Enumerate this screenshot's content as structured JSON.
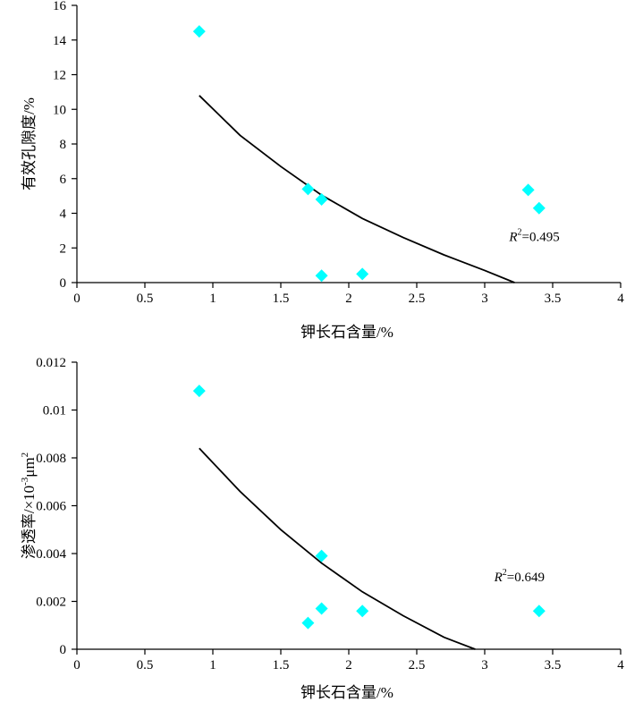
{
  "chart_data": [
    {
      "type": "scatter",
      "title": "",
      "xlabel": "钾长石含量/%",
      "ylabel": "有效孔隙度/%",
      "xlim": [
        0,
        4
      ],
      "ylim": [
        0,
        16
      ],
      "xticks": [
        0,
        0.5,
        1,
        1.5,
        2,
        2.5,
        3,
        3.5,
        4
      ],
      "yticks": [
        0,
        2,
        4,
        6,
        8,
        10,
        12,
        14,
        16
      ],
      "xtick_labels": [
        "0",
        "0.5",
        "1",
        "1.5",
        "2",
        "2.5",
        "3",
        "3.5",
        "4"
      ],
      "ytick_labels": [
        "0",
        "2",
        "4",
        "6",
        "8",
        "10",
        "12",
        "14",
        "16"
      ],
      "points": [
        {
          "x": 0.9,
          "y": 14.5
        },
        {
          "x": 1.7,
          "y": 5.4
        },
        {
          "x": 1.8,
          "y": 4.8
        },
        {
          "x": 1.8,
          "y": 0.4
        },
        {
          "x": 2.1,
          "y": 0.5
        },
        {
          "x": 3.32,
          "y": 5.35
        },
        {
          "x": 3.4,
          "y": 4.3
        }
      ],
      "trendline": {
        "type": "curve",
        "points": [
          {
            "x": 0.9,
            "y": 10.8
          },
          {
            "x": 1.2,
            "y": 8.5
          },
          {
            "x": 1.5,
            "y": 6.7
          },
          {
            "x": 1.8,
            "y": 5.05
          },
          {
            "x": 2.1,
            "y": 3.7
          },
          {
            "x": 2.4,
            "y": 2.6
          },
          {
            "x": 2.7,
            "y": 1.6
          },
          {
            "x": 3.0,
            "y": 0.7
          },
          {
            "x": 3.22,
            "y": 0.0
          }
        ]
      },
      "r2_label": "R",
      "r2_sup": "2",
      "r2_value": "=0.495",
      "r2_anchor": {
        "x": 3.18,
        "y": 2.4
      },
      "marker_color": "#00FFFF",
      "line_color": "#000000"
    },
    {
      "type": "scatter",
      "title": "",
      "xlabel": "钾长石含量/%",
      "ylabel": "渗透率/×10",
      "ylabel_sup1": "-3",
      "ylabel_mid": "μm",
      "ylabel_sup2": "2",
      "xlim": [
        0,
        4
      ],
      "ylim": [
        0,
        0.012
      ],
      "xticks": [
        0,
        0.5,
        1,
        1.5,
        2,
        2.5,
        3,
        3.5,
        4
      ],
      "yticks": [
        0,
        0.002,
        0.004,
        0.006,
        0.008,
        0.01,
        0.012
      ],
      "xtick_labels": [
        "0",
        "0.5",
        "1",
        "1.5",
        "2",
        "2.5",
        "3",
        "3.5",
        "4"
      ],
      "ytick_labels": [
        "0",
        "0.002",
        "0.004",
        "0.006",
        "0.008",
        "0.01",
        "0.012"
      ],
      "points": [
        {
          "x": 0.9,
          "y": 0.0108
        },
        {
          "x": 1.8,
          "y": 0.0039
        },
        {
          "x": 1.8,
          "y": 0.0017
        },
        {
          "x": 1.7,
          "y": 0.0011
        },
        {
          "x": 2.1,
          "y": 0.0016
        },
        {
          "x": 3.4,
          "y": 0.0016
        }
      ],
      "trendline": {
        "type": "curve",
        "points": [
          {
            "x": 0.9,
            "y": 0.0084
          },
          {
            "x": 1.2,
            "y": 0.0066
          },
          {
            "x": 1.5,
            "y": 0.005
          },
          {
            "x": 1.8,
            "y": 0.0036
          },
          {
            "x": 2.1,
            "y": 0.0024
          },
          {
            "x": 2.4,
            "y": 0.0014
          },
          {
            "x": 2.7,
            "y": 0.0005
          },
          {
            "x": 2.93,
            "y": 0.0
          }
        ]
      },
      "r2_label": "R",
      "r2_sup": "2",
      "r2_value": "=0.649",
      "r2_anchor": {
        "x": 3.07,
        "y": 0.00285
      },
      "marker_color": "#00FFFF",
      "line_color": "#000000"
    }
  ]
}
